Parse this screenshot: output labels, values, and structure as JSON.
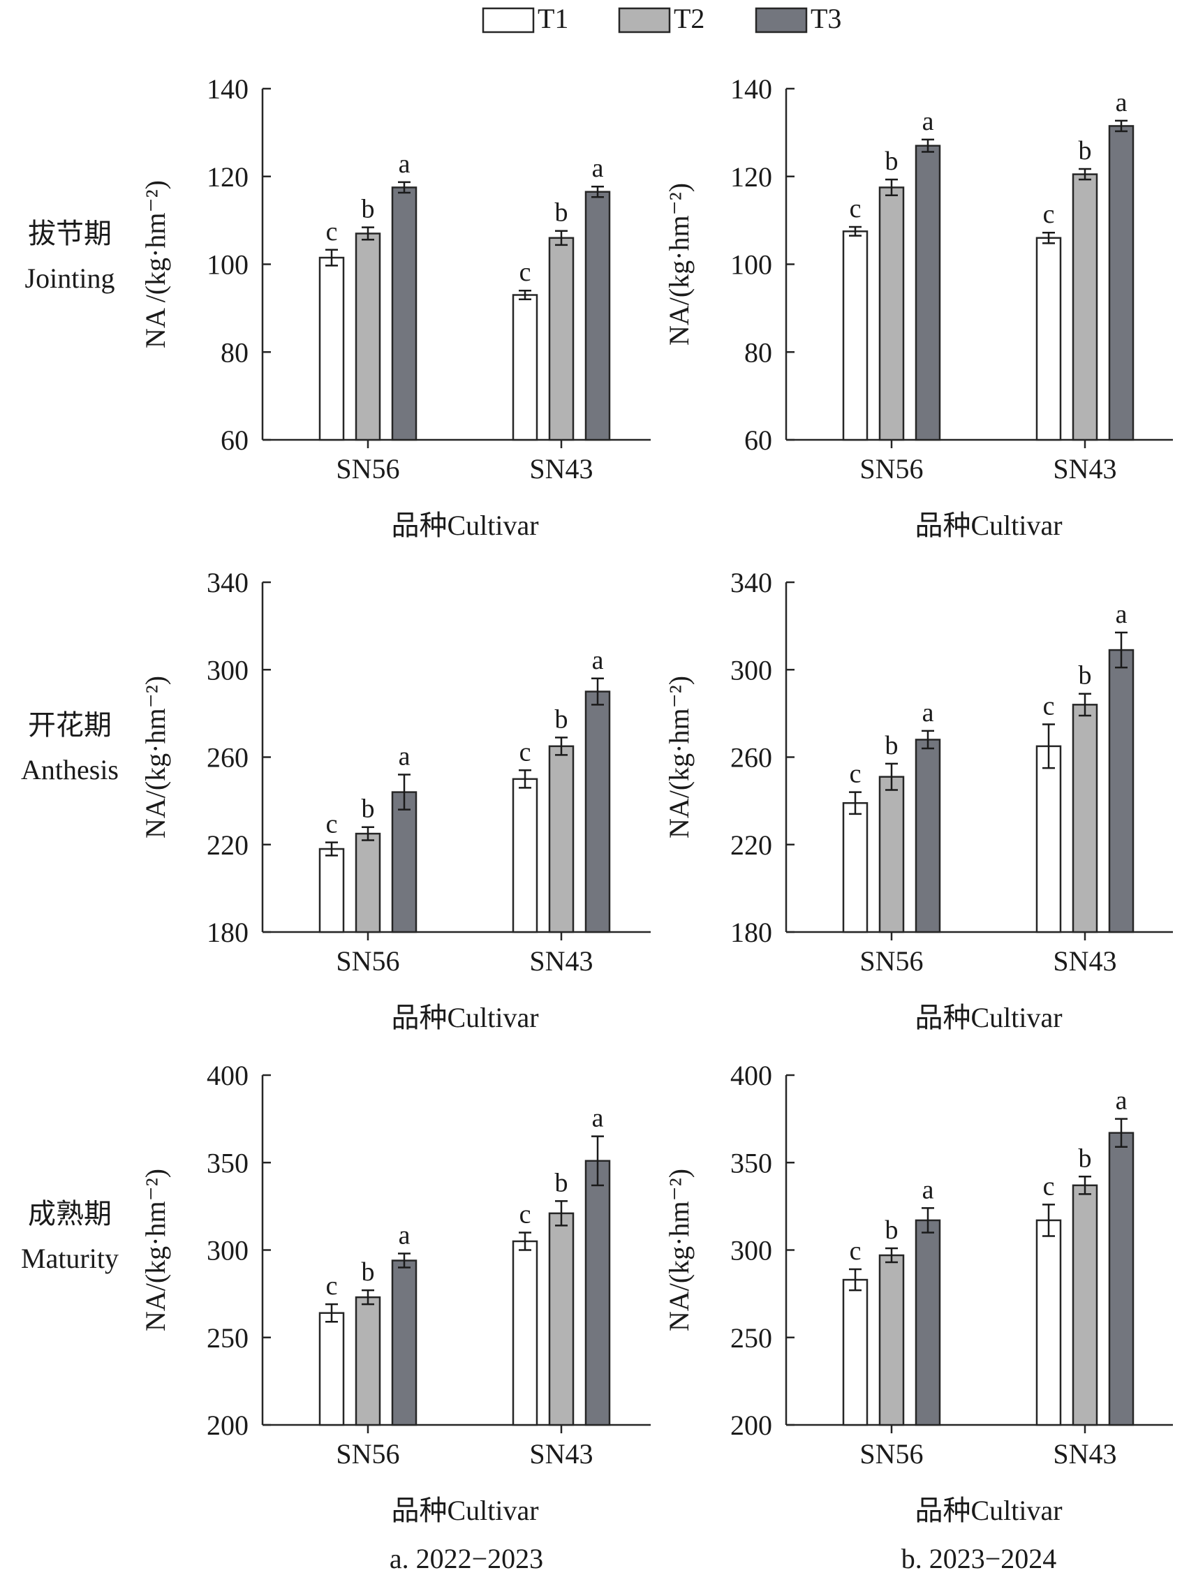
{
  "legend": [
    {
      "name": "T1",
      "color": "#ffffff"
    },
    {
      "name": "T2",
      "color": "#b3b3b3"
    },
    {
      "name": "T3",
      "color": "#73767e"
    }
  ],
  "rows": [
    {
      "zh": "拔节期",
      "en": "Jointing"
    },
    {
      "zh": "开花期",
      "en": "Anthesis"
    },
    {
      "zh": "成熟期",
      "en": "Maturity"
    }
  ],
  "columns": [
    {
      "caption": "a. 2022−2023"
    },
    {
      "caption": "b. 2023−2024"
    }
  ],
  "chart_data": [
    {
      "type": "bar",
      "row": 0,
      "col": 0,
      "ylabel": "NA /(kg·hm⁻²)",
      "xlabel": "品种Cultivar",
      "ylim": [
        60,
        140
      ],
      "yticks": [
        60,
        80,
        100,
        120,
        140
      ],
      "categories": [
        "SN56",
        "SN43"
      ],
      "series": [
        {
          "name": "T1",
          "values": [
            101.5,
            93
          ],
          "errors": [
            1.8,
            1.0
          ],
          "letters": [
            "c",
            "c"
          ]
        },
        {
          "name": "T2",
          "values": [
            107,
            106
          ],
          "errors": [
            1.4,
            1.6
          ],
          "letters": [
            "b",
            "b"
          ]
        },
        {
          "name": "T3",
          "values": [
            117.5,
            116.5
          ],
          "errors": [
            1.2,
            1.2
          ],
          "letters": [
            "a",
            "a"
          ]
        }
      ]
    },
    {
      "type": "bar",
      "row": 0,
      "col": 1,
      "ylabel": "NA/(kg·hm⁻²)",
      "xlabel": "品种Cultivar",
      "ylim": [
        60,
        140
      ],
      "yticks": [
        60,
        80,
        100,
        120,
        140
      ],
      "categories": [
        "SN56",
        "SN43"
      ],
      "series": [
        {
          "name": "T1",
          "values": [
            107.5,
            106
          ],
          "errors": [
            1.0,
            1.2
          ],
          "letters": [
            "c",
            "c"
          ]
        },
        {
          "name": "T2",
          "values": [
            117.5,
            120.5
          ],
          "errors": [
            1.8,
            1.2
          ],
          "letters": [
            "b",
            "b"
          ]
        },
        {
          "name": "T3",
          "values": [
            127,
            131.5
          ],
          "errors": [
            1.4,
            1.2
          ],
          "letters": [
            "a",
            "a"
          ]
        }
      ]
    },
    {
      "type": "bar",
      "row": 1,
      "col": 0,
      "ylabel": "NA/(kg·hm⁻²)",
      "xlabel": "品种Cultivar",
      "ylim": [
        180,
        340
      ],
      "yticks": [
        180,
        220,
        260,
        300,
        340
      ],
      "categories": [
        "SN56",
        "SN43"
      ],
      "series": [
        {
          "name": "T1",
          "values": [
            218,
            250
          ],
          "errors": [
            3,
            4
          ],
          "letters": [
            "c",
            "c"
          ]
        },
        {
          "name": "T2",
          "values": [
            225,
            265
          ],
          "errors": [
            3,
            4
          ],
          "letters": [
            "b",
            "b"
          ]
        },
        {
          "name": "T3",
          "values": [
            244,
            290
          ],
          "errors": [
            8,
            6
          ],
          "letters": [
            "a",
            "a"
          ]
        }
      ]
    },
    {
      "type": "bar",
      "row": 1,
      "col": 1,
      "ylabel": "NA/(kg·hm⁻²)",
      "xlabel": "品种Cultivar",
      "ylim": [
        180,
        340
      ],
      "yticks": [
        180,
        220,
        260,
        300,
        340
      ],
      "categories": [
        "SN56",
        "SN43"
      ],
      "series": [
        {
          "name": "T1",
          "values": [
            239,
            265
          ],
          "errors": [
            5,
            10
          ],
          "letters": [
            "c",
            "c"
          ]
        },
        {
          "name": "T2",
          "values": [
            251,
            284
          ],
          "errors": [
            6,
            5
          ],
          "letters": [
            "b",
            "b"
          ]
        },
        {
          "name": "T3",
          "values": [
            268,
            309
          ],
          "errors": [
            4,
            8
          ],
          "letters": [
            "a",
            "a"
          ]
        }
      ]
    },
    {
      "type": "bar",
      "row": 2,
      "col": 0,
      "ylabel": "NA/(kg·hm⁻²)",
      "xlabel": "品种Cultivar",
      "ylim": [
        200,
        400
      ],
      "yticks": [
        200,
        250,
        300,
        350,
        400
      ],
      "categories": [
        "SN56",
        "SN43"
      ],
      "series": [
        {
          "name": "T1",
          "values": [
            264,
            305
          ],
          "errors": [
            5,
            5
          ],
          "letters": [
            "c",
            "c"
          ]
        },
        {
          "name": "T2",
          "values": [
            273,
            321
          ],
          "errors": [
            4,
            7
          ],
          "letters": [
            "b",
            "b"
          ]
        },
        {
          "name": "T3",
          "values": [
            294,
            351
          ],
          "errors": [
            4,
            14
          ],
          "letters": [
            "a",
            "a"
          ]
        }
      ]
    },
    {
      "type": "bar",
      "row": 2,
      "col": 1,
      "ylabel": "NA/(kg·hm⁻²)",
      "xlabel": "品种Cultivar",
      "ylim": [
        200,
        400
      ],
      "yticks": [
        200,
        250,
        300,
        350,
        400
      ],
      "categories": [
        "SN56",
        "SN43"
      ],
      "series": [
        {
          "name": "T1",
          "values": [
            283,
            317
          ],
          "errors": [
            6,
            9
          ],
          "letters": [
            "c",
            "c"
          ]
        },
        {
          "name": "T2",
          "values": [
            297,
            337
          ],
          "errors": [
            4,
            5
          ],
          "letters": [
            "b",
            "b"
          ]
        },
        {
          "name": "T3",
          "values": [
            317,
            367
          ],
          "errors": [
            7,
            8
          ],
          "letters": [
            "a",
            "a"
          ]
        }
      ]
    }
  ]
}
